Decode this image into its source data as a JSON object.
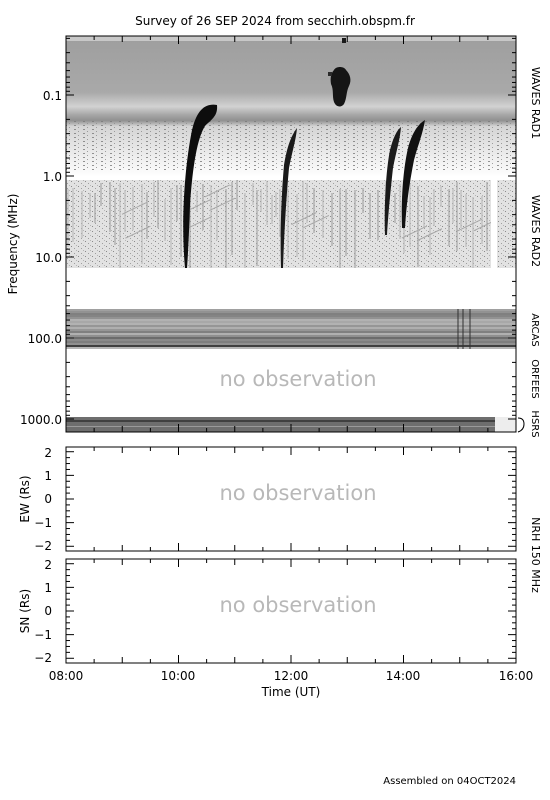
{
  "chart_data": [
    {
      "type": "heatmap",
      "title": "Survey of 26 SEP 2024 from secchirh.obspm.fr",
      "ylabel": "Frequency (MHz)",
      "y_scale": "log",
      "y_reversed": true,
      "y_ticks": [
        "0.1",
        "1.0",
        "10.0",
        "100.0",
        "1000.0"
      ],
      "instruments": [
        {
          "name": "WAVES RAD1",
          "freq_range": [
            0.02,
            1.0
          ],
          "observed": true
        },
        {
          "name": "WAVES RAD2",
          "freq_range": [
            1.0,
            14.0
          ],
          "observed": true
        },
        {
          "name": "ARCAS",
          "freq_range": [
            50,
            150
          ],
          "observed": true
        },
        {
          "name": "ORFEES",
          "freq_range": [
            150,
            1000
          ],
          "observed": false
        },
        {
          "name": "HSRS",
          "freq_range": [
            1000,
            1500
          ],
          "observed": true
        }
      ],
      "bursts": [
        {
          "time": "10:15",
          "freq_high": 0.05,
          "freq_low": 13.5
        },
        {
          "time": "11:50",
          "freq_high": 0.15,
          "freq_low": 13.5
        },
        {
          "time": "13:43",
          "freq_high": 0.2,
          "freq_low": 5.0
        },
        {
          "time": "14:05",
          "freq_high": 0.15,
          "freq_low": 4.0
        }
      ],
      "annotation": "no observation"
    },
    {
      "type": "scatter",
      "ylabel": "EW (Rs)",
      "ylim": [
        -2.2,
        2.2
      ],
      "y_ticks": [
        "2",
        "1",
        "0",
        "−1",
        "−2"
      ],
      "annotation": "no observation"
    },
    {
      "type": "scatter",
      "ylabel": "SN (Rs)",
      "ylim": [
        -2.2,
        2.2
      ],
      "y_ticks": [
        "2",
        "1",
        "0",
        "−1",
        "−2"
      ],
      "annotation": "no observation"
    }
  ],
  "shared": {
    "xlabel": "Time (UT)",
    "xlim": [
      "08:00",
      "16:00"
    ],
    "x_ticks": [
      "08:00",
      "10:00",
      "12:00",
      "14:00",
      "16:00"
    ],
    "nrh_label": "NRH 150 MHz"
  },
  "footer": "Assembled on 04OCT2024"
}
